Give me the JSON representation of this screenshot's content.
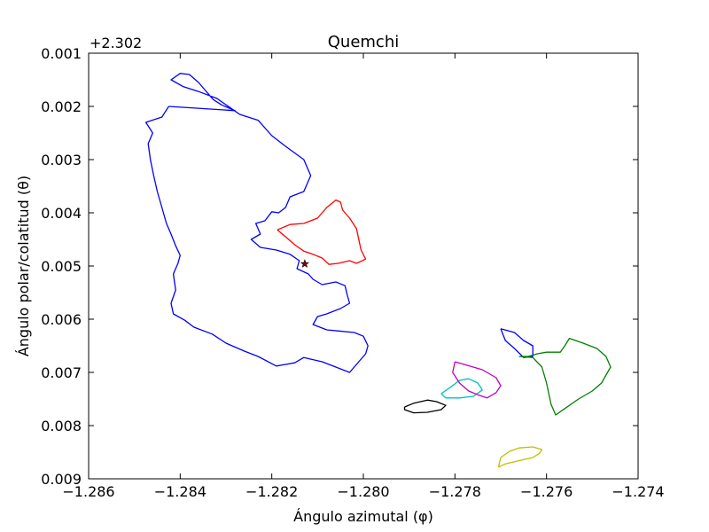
{
  "chart_data": {
    "type": "line",
    "title": "Quemchi",
    "xlabel": "Ángulo azimutal (φ)",
    "ylabel": "Ángulo polar/colatitud (θ)",
    "offset_label": "+2.302",
    "xlim": [
      -1.286,
      -1.274
    ],
    "ylim": [
      0.009,
      0.001
    ],
    "y_inverted": true,
    "grid": false,
    "x_ticks": [
      -1.286,
      -1.284,
      -1.282,
      -1.28,
      -1.278,
      -1.276,
      -1.274
    ],
    "x_tick_labels": [
      "−1.286",
      "−1.284",
      "−1.282",
      "−1.280",
      "−1.278",
      "−1.276",
      "−1.274"
    ],
    "y_ticks": [
      0.001,
      0.002,
      0.003,
      0.004,
      0.005,
      0.006,
      0.007,
      0.008,
      0.009
    ],
    "y_tick_labels": [
      "0.001",
      "0.002",
      "0.003",
      "0.004",
      "0.005",
      "0.006",
      "0.007",
      "0.008",
      "0.009"
    ],
    "marker": {
      "symbol": "star",
      "x": -1.28128,
      "y": 0.00496,
      "color": "#8b0000"
    },
    "series": [
      {
        "color": "#0000ff",
        "points": [
          [
            -1.28425,
            0.002
          ],
          [
            -1.2828,
            0.00208
          ],
          [
            -1.2831,
            0.00197
          ],
          [
            -1.28328,
            0.00187
          ],
          [
            -1.2836,
            0.00155
          ],
          [
            -1.2838,
            0.0014
          ],
          [
            -1.284,
            0.00138
          ],
          [
            -1.2842,
            0.0015
          ],
          [
            -1.28393,
            0.00163
          ],
          [
            -1.2836,
            0.00172
          ],
          [
            -1.2832,
            0.00185
          ],
          [
            -1.283,
            0.00197
          ],
          [
            -1.2827,
            0.00215
          ],
          [
            -1.2823,
            0.00226
          ],
          [
            -1.282,
            0.00255
          ],
          [
            -1.2817,
            0.00275
          ],
          [
            -1.2813,
            0.003
          ],
          [
            -1.28115,
            0.0033
          ],
          [
            -1.2813,
            0.0036
          ],
          [
            -1.2816,
            0.0037
          ],
          [
            -1.2817,
            0.0039
          ],
          [
            -1.28185,
            0.004
          ],
          [
            -1.282,
            0.00398
          ],
          [
            -1.28215,
            0.00415
          ],
          [
            -1.28235,
            0.0042
          ],
          [
            -1.28225,
            0.0044
          ],
          [
            -1.28245,
            0.0045
          ],
          [
            -1.28225,
            0.00465
          ],
          [
            -1.2819,
            0.0047
          ],
          [
            -1.2816,
            0.00478
          ],
          [
            -1.2814,
            0.0049
          ],
          [
            -1.28145,
            0.00505
          ],
          [
            -1.2812,
            0.00515
          ],
          [
            -1.2811,
            0.00525
          ],
          [
            -1.2809,
            0.00535
          ],
          [
            -1.2806,
            0.0053
          ],
          [
            -1.2804,
            0.00537
          ],
          [
            -1.28035,
            0.00555
          ],
          [
            -1.2803,
            0.0057
          ],
          [
            -1.2805,
            0.0058
          ],
          [
            -1.2808,
            0.0059
          ],
          [
            -1.281,
            0.00595
          ],
          [
            -1.2811,
            0.0061
          ],
          [
            -1.2808,
            0.0062
          ],
          [
            -1.2802,
            0.00625
          ],
          [
            -1.28,
            0.00632
          ],
          [
            -1.2799,
            0.0065
          ],
          [
            -1.27995,
            0.00665
          ],
          [
            -1.2801,
            0.0068
          ],
          [
            -1.2803,
            0.007
          ],
          [
            -1.2806,
            0.0069
          ],
          [
            -1.2809,
            0.0068
          ],
          [
            -1.2813,
            0.00672
          ],
          [
            -1.2815,
            0.00682
          ],
          [
            -1.2817,
            0.00685
          ],
          [
            -1.2819,
            0.00688
          ],
          [
            -1.2823,
            0.0067
          ],
          [
            -1.2826,
            0.0066
          ],
          [
            -1.283,
            0.00645
          ],
          [
            -1.2833,
            0.00628
          ],
          [
            -1.2837,
            0.00615
          ],
          [
            -1.2839,
            0.00602
          ],
          [
            -1.28415,
            0.0059
          ],
          [
            -1.2842,
            0.0057
          ],
          [
            -1.2841,
            0.00545
          ],
          [
            -1.28415,
            0.00515
          ],
          [
            -1.28405,
            0.00495
          ],
          [
            -1.284,
            0.0048
          ],
          [
            -1.2841,
            0.00462
          ],
          [
            -1.2842,
            0.0044
          ],
          [
            -1.2843,
            0.0042
          ],
          [
            -1.2844,
            0.0039
          ],
          [
            -1.2845,
            0.0036
          ],
          [
            -1.28458,
            0.0033
          ],
          [
            -1.28465,
            0.003
          ],
          [
            -1.2847,
            0.0027
          ],
          [
            -1.2846,
            0.0025
          ],
          [
            -1.28475,
            0.0023
          ],
          [
            -1.2844,
            0.0022
          ],
          [
            -1.28425,
            0.002
          ]
        ]
      },
      {
        "color": "#ff0000",
        "points": [
          [
            -1.28188,
            0.00432
          ],
          [
            -1.2816,
            0.00422
          ],
          [
            -1.2813,
            0.0042
          ],
          [
            -1.281,
            0.0041
          ],
          [
            -1.2808,
            0.0039
          ],
          [
            -1.2806,
            0.00376
          ],
          [
            -1.2805,
            0.0038
          ],
          [
            -1.28045,
            0.00395
          ],
          [
            -1.2803,
            0.0041
          ],
          [
            -1.28015,
            0.0043
          ],
          [
            -1.2801,
            0.0045
          ],
          [
            -1.28005,
            0.0047
          ],
          [
            -1.27995,
            0.00487
          ],
          [
            -1.28015,
            0.00495
          ],
          [
            -1.2803,
            0.0049
          ],
          [
            -1.28055,
            0.00495
          ],
          [
            -1.28075,
            0.00497
          ],
          [
            -1.2809,
            0.00485
          ],
          [
            -1.2811,
            0.00478
          ],
          [
            -1.2813,
            0.00472
          ],
          [
            -1.2815,
            0.0046
          ],
          [
            -1.2817,
            0.00445
          ],
          [
            -1.28188,
            0.00432
          ]
        ]
      },
      {
        "color": "#0000ff",
        "points": [
          [
            -1.277,
            0.00618
          ],
          [
            -1.2767,
            0.00625
          ],
          [
            -1.2765,
            0.0064
          ],
          [
            -1.2763,
            0.0065
          ],
          [
            -1.2763,
            0.0067
          ],
          [
            -1.2765,
            0.00672
          ],
          [
            -1.2767,
            0.00655
          ],
          [
            -1.2769,
            0.0064
          ],
          [
            -1.277,
            0.00618
          ]
        ]
      },
      {
        "color": "#008000",
        "points": [
          [
            -1.2766,
            0.0067
          ],
          [
            -1.2763,
            0.00672
          ],
          [
            -1.2761,
            0.0069
          ],
          [
            -1.276,
            0.0072
          ],
          [
            -1.2759,
            0.0076
          ],
          [
            -1.2758,
            0.0078
          ],
          [
            -1.2756,
            0.00768
          ],
          [
            -1.2753,
            0.0075
          ],
          [
            -1.275,
            0.00735
          ],
          [
            -1.2748,
            0.0072
          ],
          [
            -1.2747,
            0.00705
          ],
          [
            -1.2746,
            0.0069
          ],
          [
            -1.2747,
            0.0067
          ],
          [
            -1.2749,
            0.00655
          ],
          [
            -1.2752,
            0.00645
          ],
          [
            -1.2755,
            0.00636
          ],
          [
            -1.2756,
            0.0065
          ],
          [
            -1.2757,
            0.00662
          ],
          [
            -1.276,
            0.00662
          ],
          [
            -1.2762,
            0.00665
          ],
          [
            -1.2764,
            0.0067
          ],
          [
            -1.2766,
            0.0067
          ]
        ]
      },
      {
        "color": "#00bfbf",
        "points": [
          [
            -1.2783,
            0.0074
          ],
          [
            -1.2781,
            0.00728
          ],
          [
            -1.2779,
            0.00715
          ],
          [
            -1.2777,
            0.00712
          ],
          [
            -1.2775,
            0.0072
          ],
          [
            -1.2774,
            0.00733
          ],
          [
            -1.2776,
            0.00745
          ],
          [
            -1.2779,
            0.00748
          ],
          [
            -1.2782,
            0.00748
          ],
          [
            -1.2783,
            0.0074
          ]
        ]
      },
      {
        "color": "#bf00bf",
        "points": [
          [
            -1.278,
            0.0068
          ],
          [
            -1.2778,
            0.00685
          ],
          [
            -1.2774,
            0.00695
          ],
          [
            -1.2771,
            0.0071
          ],
          [
            -1.277,
            0.00725
          ],
          [
            -1.2771,
            0.00738
          ],
          [
            -1.2773,
            0.00748
          ],
          [
            -1.2775,
            0.00742
          ],
          [
            -1.2777,
            0.00735
          ],
          [
            -1.2779,
            0.0072
          ],
          [
            -1.27805,
            0.007
          ],
          [
            -1.278,
            0.0068
          ]
        ]
      },
      {
        "color": "#000000",
        "points": [
          [
            -1.2791,
            0.00765
          ],
          [
            -1.2789,
            0.00758
          ],
          [
            -1.2786,
            0.00752
          ],
          [
            -1.2784,
            0.00755
          ],
          [
            -1.2782,
            0.00762
          ],
          [
            -1.2783,
            0.0077
          ],
          [
            -1.2786,
            0.00775
          ],
          [
            -1.2789,
            0.00776
          ],
          [
            -1.2791,
            0.0077
          ],
          [
            -1.2791,
            0.00765
          ]
        ]
      },
      {
        "color": "#bfbf00",
        "points": [
          [
            -1.27705,
            0.00878
          ],
          [
            -1.2769,
            0.00872
          ],
          [
            -1.2767,
            0.00868
          ],
          [
            -1.2765,
            0.00864
          ],
          [
            -1.2763,
            0.0086
          ],
          [
            -1.27615,
            0.00852
          ],
          [
            -1.2761,
            0.00845
          ],
          [
            -1.2763,
            0.0084
          ],
          [
            -1.2766,
            0.00842
          ],
          [
            -1.2768,
            0.00848
          ],
          [
            -1.277,
            0.0086
          ],
          [
            -1.27705,
            0.00878
          ]
        ]
      }
    ]
  }
}
